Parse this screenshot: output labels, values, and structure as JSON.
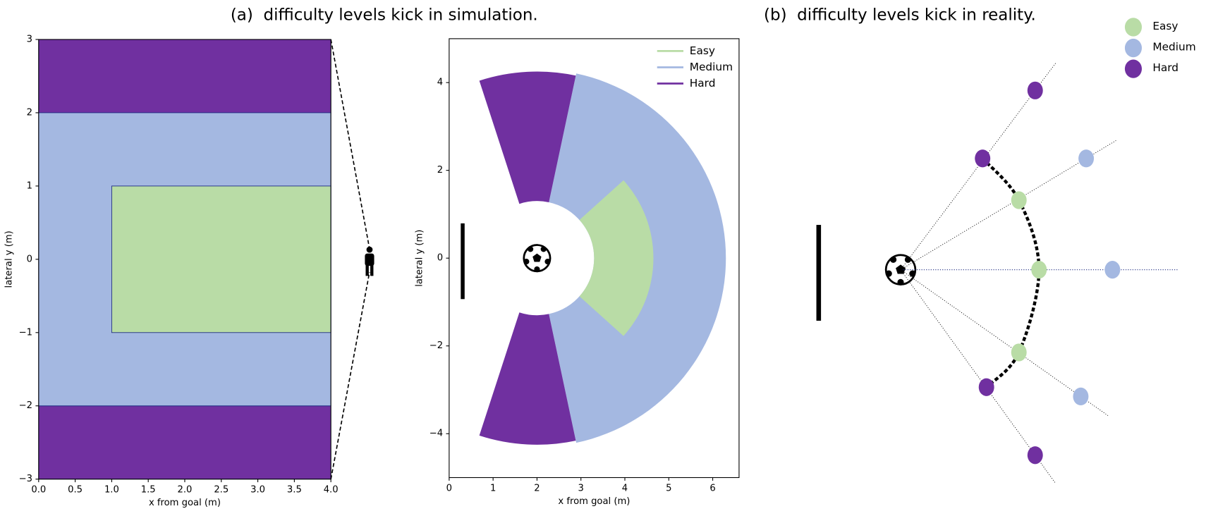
{
  "chart_data": [
    {
      "type": "region",
      "title": "(a)  difficulty levels kick in simulation.",
      "x_label": "x from goal (m)",
      "y_label": "lateral y (m)",
      "xlim": [
        0,
        4
      ],
      "ylim": [
        -3,
        3
      ],
      "xticks": [
        {
          "value": 0,
          "label": "0.0"
        },
        0.5,
        {
          "value": 1,
          "label": "1.0"
        },
        1.5,
        {
          "value": 2,
          "label": "2.0"
        },
        2.5,
        {
          "value": 3,
          "label": "3.0"
        },
        3.5,
        {
          "value": 4,
          "label": "4.0"
        }
      ],
      "yticks": [
        {
          "value": -3,
          "label": "−3"
        },
        {
          "value": -2,
          "label": "−2"
        },
        {
          "value": -1,
          "label": "−1"
        },
        0,
        1,
        2,
        3
      ],
      "regions": [
        {
          "color": "#7030a0",
          "x": [
            0,
            4
          ],
          "y": [
            2,
            3
          ]
        },
        {
          "color": "#7030a0",
          "x": [
            0,
            4
          ],
          "y": [
            -3,
            -2
          ]
        },
        {
          "color": "#a4b8e1",
          "x": [
            0,
            4
          ],
          "y": [
            -2,
            2
          ]
        },
        {
          "color": "#b9dca6",
          "x": [
            1,
            4
          ],
          "y": [
            -1,
            1
          ]
        }
      ]
    },
    {
      "type": "sector",
      "x_label": "x from goal (m)",
      "y_label": "lateral y (m)",
      "xlim": [
        0,
        6.6
      ],
      "ylim": [
        -5,
        5
      ],
      "xticks": [
        0,
        1,
        2,
        3,
        4,
        5,
        6
      ],
      "yticks": [
        {
          "value": -4,
          "label": "−4"
        },
        {
          "value": -2,
          "label": "−2"
        },
        0,
        2,
        4
      ],
      "center": [
        2,
        0
      ],
      "series": [
        {
          "name": "Easy",
          "color": "#b9dca6",
          "sectors": [
            [
              1.3,
              2.65,
              -42,
              42
            ]
          ]
        },
        {
          "name": "Medium",
          "color": "#a4b8e1",
          "sectors": [
            [
              1.3,
              4.3,
              -78,
              78
            ]
          ]
        },
        {
          "name": "Hard",
          "color": "#7030a0",
          "sectors": [
            [
              1.3,
              4.25,
              78,
              108
            ],
            [
              1.3,
              4.25,
              -108,
              -78
            ]
          ]
        }
      ]
    },
    {
      "type": "scatter",
      "title": "(b)  difficulty levels kick in reality.",
      "xlim": [
        -1.3,
        3.6
      ],
      "ylim": [
        -3.1,
        3.1
      ],
      "series": [
        {
          "name": "Easy",
          "color": "#b9dca6",
          "x": [
            1.53,
            1.79,
            1.53
          ],
          "y": [
            0.9,
            0,
            -1.07
          ]
        },
        {
          "name": "Medium",
          "color": "#a4b8e1",
          "x": [
            2.4,
            2.74,
            2.33
          ],
          "y": [
            1.44,
            0,
            -1.64
          ]
        },
        {
          "name": "Hard",
          "color": "#7030a0",
          "x": [
            1.74,
            1.06,
            1.11,
            1.74
          ],
          "y": [
            2.32,
            1.44,
            -1.52,
            -2.4
          ]
        }
      ]
    }
  ]
}
